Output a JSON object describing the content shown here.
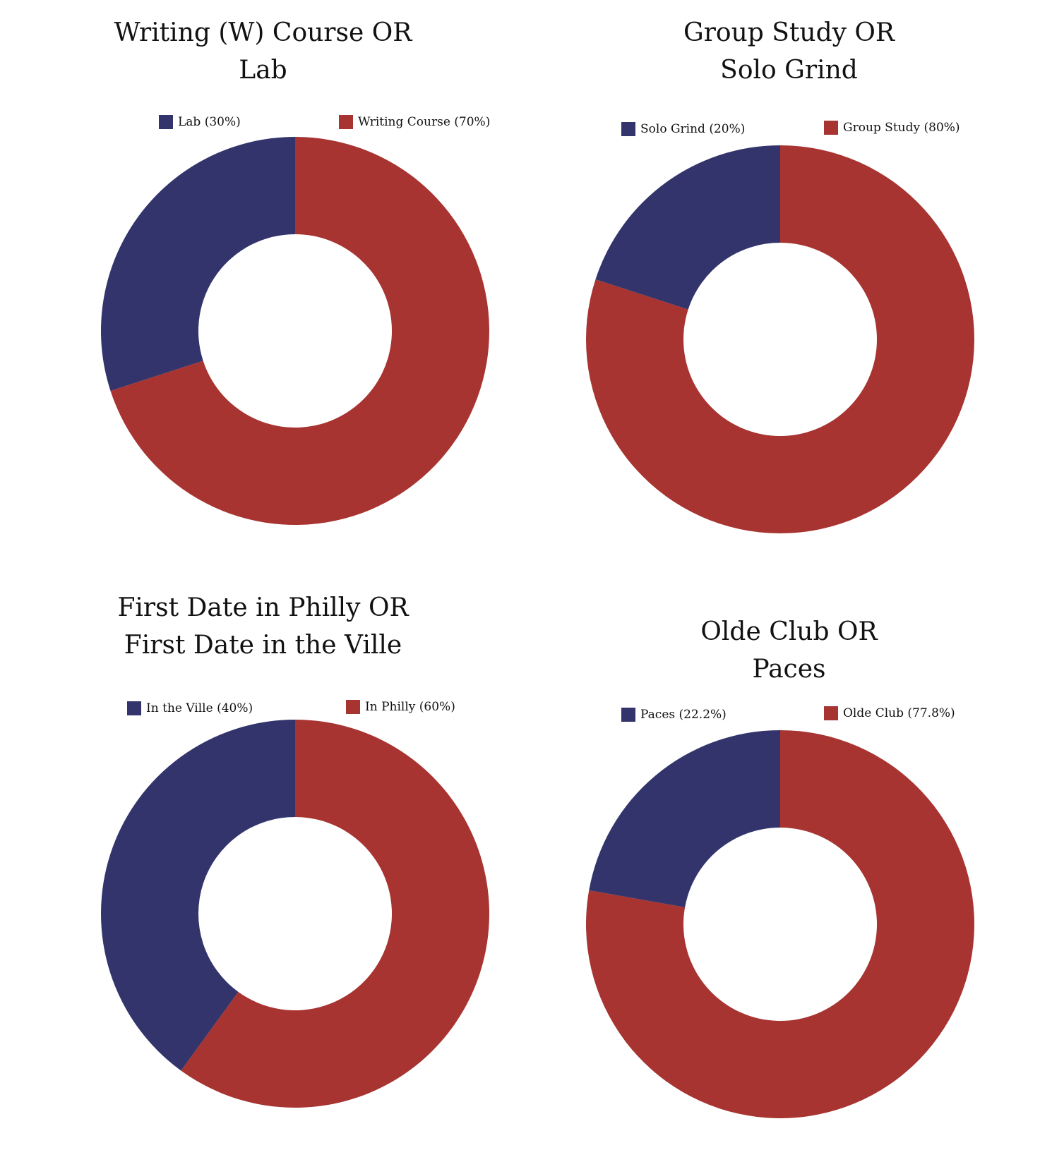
{
  "chart_data": [
    {
      "type": "pie",
      "title_lines": [
        "Writing (W) Course OR",
        "Lab"
      ],
      "series": [
        {
          "name": "Lab",
          "value": 30,
          "color": "#32346b"
        },
        {
          "name": "Writing Course",
          "value": 70,
          "color": "#a73431"
        }
      ],
      "legend_labels": [
        "Lab (30%)",
        "Writing Course (70%)"
      ],
      "donut": true,
      "legend_position": "top"
    },
    {
      "type": "pie",
      "title_lines": [
        "Group Study OR",
        "Solo Grind"
      ],
      "series": [
        {
          "name": "Solo Grind",
          "value": 20,
          "color": "#32346b"
        },
        {
          "name": "Group Study",
          "value": 80,
          "color": "#a73431"
        }
      ],
      "legend_labels": [
        "Solo Grind (20%)",
        "Group Study (80%)"
      ],
      "donut": true,
      "legend_position": "top"
    },
    {
      "type": "pie",
      "title_lines": [
        "First Date in Philly OR",
        "First Date in the Ville"
      ],
      "series": [
        {
          "name": "In the Ville",
          "value": 40,
          "color": "#32346b"
        },
        {
          "name": "In Philly",
          "value": 60,
          "color": "#a73431"
        }
      ],
      "legend_labels": [
        "In the Ville (40%)",
        "In Philly (60%)"
      ],
      "donut": true,
      "legend_position": "top"
    },
    {
      "type": "pie",
      "title_lines": [
        "Olde Club OR",
        "Paces"
      ],
      "series": [
        {
          "name": "Paces",
          "value": 22.2,
          "color": "#32346b"
        },
        {
          "name": "Olde Club",
          "value": 77.8,
          "color": "#a73431"
        }
      ],
      "legend_labels": [
        "Paces (22.2%)",
        "Olde Club (77.8%)"
      ],
      "donut": true,
      "legend_position": "top"
    }
  ]
}
